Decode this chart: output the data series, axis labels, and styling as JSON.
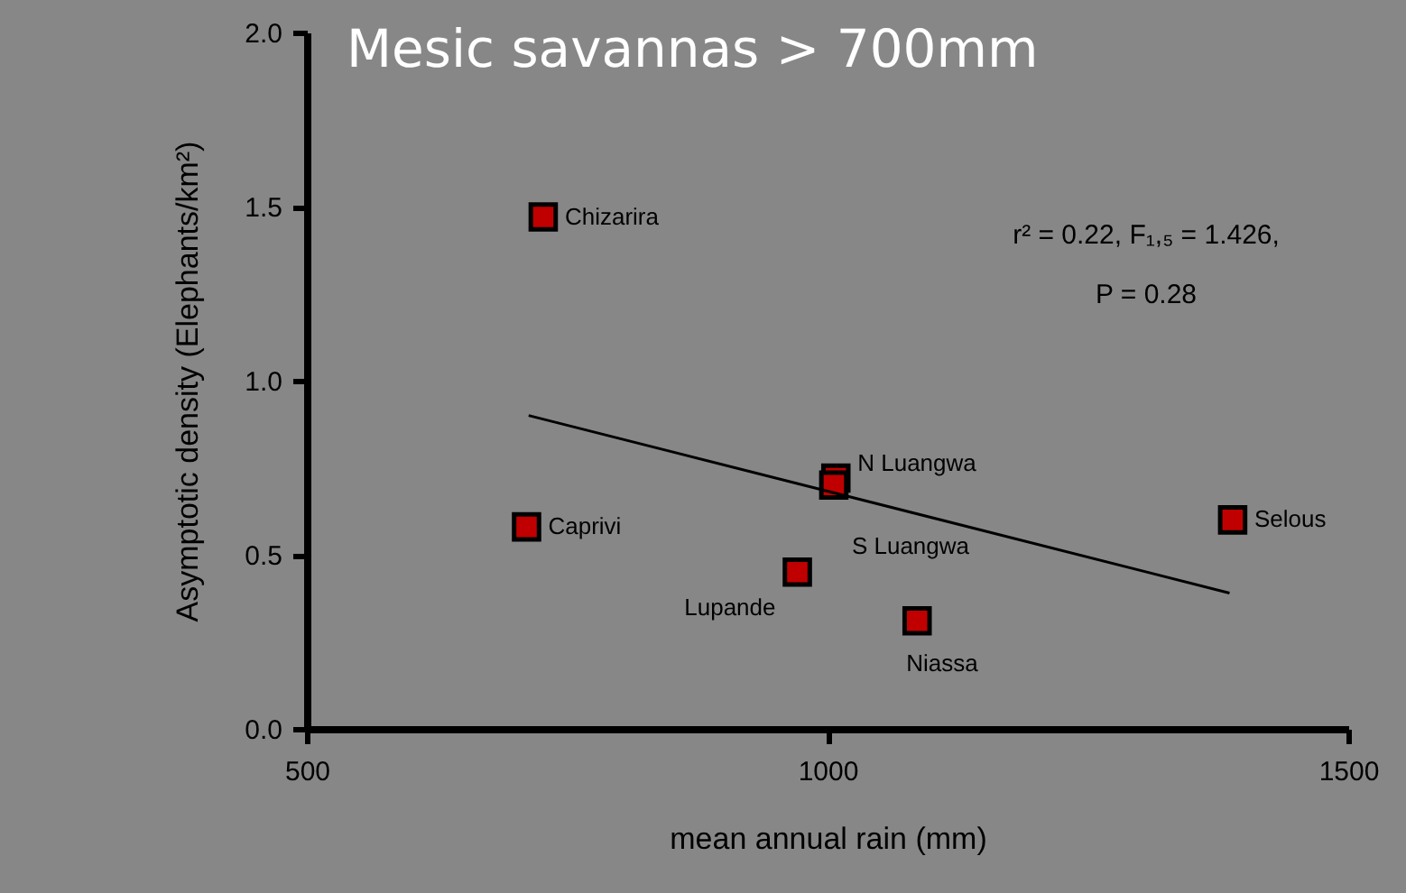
{
  "chart_data": {
    "type": "scatter",
    "title": "Mesic savannas > 700mm",
    "xlabel": "mean annual rain (mm)",
    "ylabel": "Asymptotic density (Elephants/km²)",
    "series": [
      {
        "color": "#c00000",
        "marker": "square",
        "x": [
          727,
          711,
          971,
          1008,
          1006,
          1086,
          1389
        ],
        "values": [
          1.47,
          0.58,
          0.45,
          0.72,
          0.7,
          0.31,
          0.6
        ]
      },
      {
        "type": "line",
        "color": "#000000",
        "x": [
          713,
          1386
        ],
        "values": [
          0.9,
          0.39
        ]
      }
    ],
    "annotations": [
      {
        "text": "Chizarira",
        "x": 727,
        "y": 1.47
      },
      {
        "text": "Caprivi",
        "x": 711,
        "y": 0.58
      },
      {
        "text": "Lupande",
        "x": 971,
        "y": 0.45
      },
      {
        "text": "N Luangwa",
        "x": 1008,
        "y": 0.72
      },
      {
        "text": "S Luangwa",
        "x": 1006,
        "y": 0.7
      },
      {
        "text": "Niassa",
        "x": 1086,
        "y": 0.31
      },
      {
        "text": "Selous",
        "x": 1389,
        "y": 0.6
      },
      "r² = 0.22, F₁,₅ = 1.426,",
      "P = 0.28"
    ],
    "xlim": [
      500,
      1500
    ],
    "xticks": [
      500,
      1000,
      1500
    ],
    "ylim": [
      0,
      2
    ],
    "yticks": [
      {
        "value": 0,
        "label": "0.0"
      },
      {
        "value": 0.5,
        "label": "0.5"
      },
      {
        "value": 1,
        "label": "1.0"
      },
      {
        "value": 1.5,
        "label": "1.5"
      },
      {
        "value": 2,
        "label": "2.0"
      }
    ],
    "grid": false
  }
}
